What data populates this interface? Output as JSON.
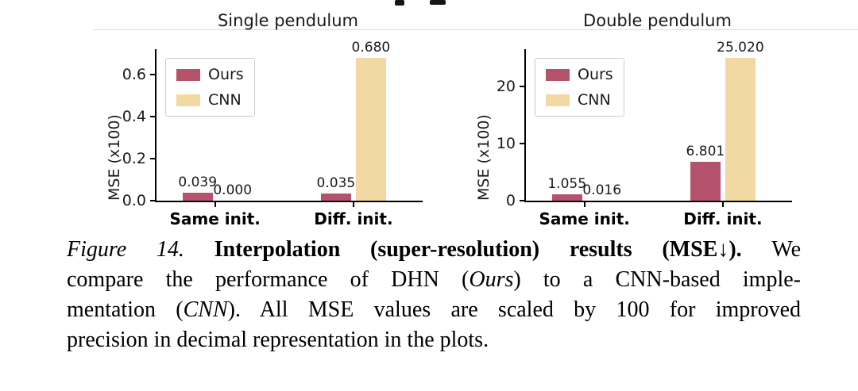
{
  "chart_data": [
    {
      "type": "bar",
      "title": "Single pendulum",
      "ylabel": "MSE (x100)",
      "categories": [
        "Same init.",
        "Diff. init."
      ],
      "series": [
        {
          "name": "Ours",
          "color": "#b4536b",
          "values": [
            0.039,
            0.035
          ],
          "value_labels": [
            "0.039",
            "0.035"
          ]
        },
        {
          "name": "CNN",
          "color": "#f2d8a2",
          "values": [
            0.0,
            0.68
          ],
          "value_labels": [
            "0.000",
            "0.680"
          ]
        }
      ],
      "ylim": [
        0,
        0.72
      ],
      "ytick_values": [
        0,
        0.2,
        0.4,
        0.6
      ],
      "ytick_labels": [
        "0.0",
        "0.2",
        "0.4",
        "0.6"
      ],
      "legend_position": "upper left",
      "grid": false
    },
    {
      "type": "bar",
      "title": "Double pendulum",
      "ylabel": "MSE (x100)",
      "categories": [
        "Same init.",
        "Diff. init."
      ],
      "series": [
        {
          "name": "Ours",
          "color": "#b4536b",
          "values": [
            1.055,
            6.801
          ],
          "value_labels": [
            "1.055",
            "6.801"
          ]
        },
        {
          "name": "CNN",
          "color": "#f2d8a2",
          "values": [
            0.016,
            25.02
          ],
          "value_labels": [
            "0.016",
            "25.020"
          ]
        }
      ],
      "ylim": [
        0,
        26.5
      ],
      "ytick_values": [
        0,
        10,
        20
      ],
      "ytick_labels": [
        "0",
        "10",
        "20"
      ],
      "legend_position": "upper left",
      "grid": false
    }
  ],
  "caption": {
    "lines": [
      [
        {
          "text": "Figure 14. ",
          "style": "italic"
        },
        {
          "text": "Interpolation (super-resolution) results (MSE↓). ",
          "style": "bold"
        },
        {
          "text": "We",
          "style": "normal"
        }
      ],
      [
        {
          "text": "compare the performance of DHN (",
          "style": "normal"
        },
        {
          "text": "Ours",
          "style": "italic"
        },
        {
          "text": ") to a CNN-based imple-",
          "style": "normal"
        }
      ],
      [
        {
          "text": "mentation (",
          "style": "normal"
        },
        {
          "text": "CNN",
          "style": "italic"
        },
        {
          "text": "). All MSE values are scaled by 100 for improved",
          "style": "normal"
        }
      ],
      [
        {
          "text": "precision in decimal representation in the plots.",
          "style": "normal"
        }
      ]
    ]
  }
}
